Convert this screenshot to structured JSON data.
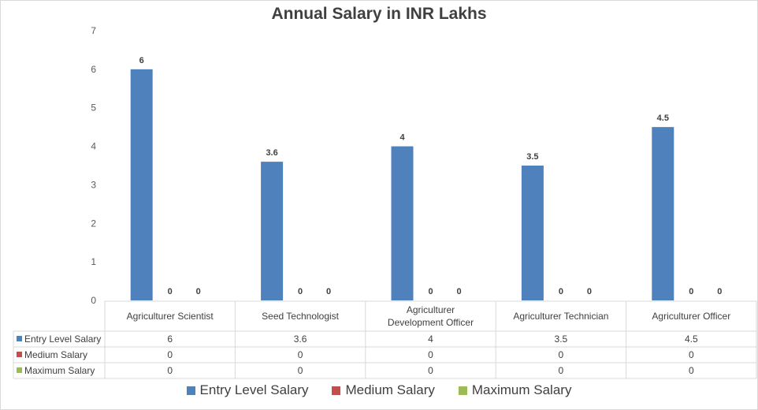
{
  "chart_data": {
    "type": "bar",
    "title": "Annual Salary in INR Lakhs",
    "categories": [
      "Agriculturer Scientist",
      "Seed Technologist",
      "Agriculturer Development Officer",
      "Agriculturer Technician",
      "Agriculturer Officer"
    ],
    "category_lines": [
      [
        "Agriculturer Scientist"
      ],
      [
        "Seed Technologist"
      ],
      [
        "Agriculturer",
        "Development Officer"
      ],
      [
        "Agriculturer Technician"
      ],
      [
        "Agriculturer Officer"
      ]
    ],
    "series": [
      {
        "name": "Entry Level Salary",
        "color": "#4f81bd",
        "values": [
          6,
          3.6,
          4,
          3.5,
          4.5
        ],
        "labels": [
          "6",
          "3.6",
          "4",
          "3.5",
          "4.5"
        ]
      },
      {
        "name": "Medium Salary",
        "color": "#c0504d",
        "values": [
          0,
          0,
          0,
          0,
          0
        ],
        "labels": [
          "0",
          "0",
          "0",
          "0",
          "0"
        ]
      },
      {
        "name": "Maximum Salary",
        "color": "#9bbb59",
        "values": [
          0,
          0,
          0,
          0,
          0
        ],
        "labels": [
          "0",
          "0",
          "0",
          "0",
          "0"
        ]
      }
    ],
    "yticks": [
      "0",
      "1",
      "2",
      "3",
      "4",
      "5",
      "6",
      "7"
    ],
    "ylim": [
      0,
      7
    ],
    "xlabel": "",
    "ylabel": "",
    "grid": false,
    "data_table": true,
    "legend": "bottom"
  }
}
